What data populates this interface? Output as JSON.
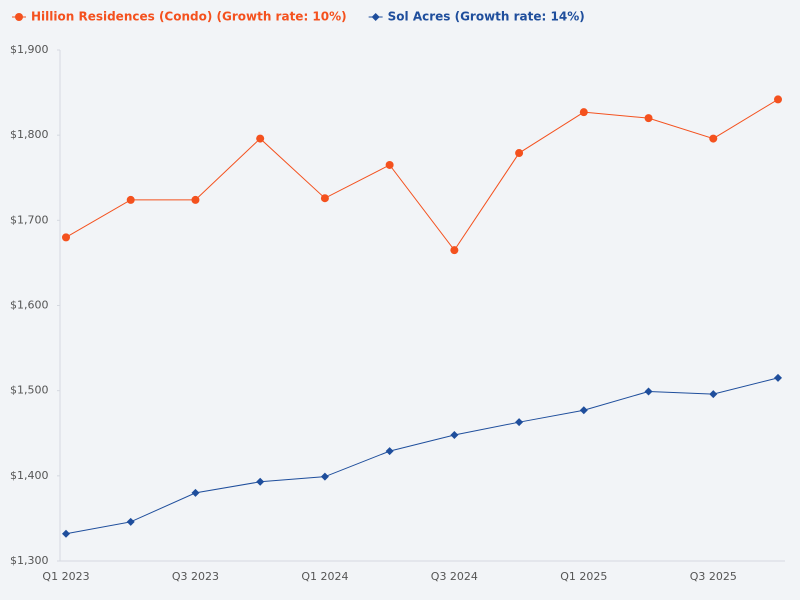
{
  "chart_data": {
    "type": "line",
    "categories": [
      "Q1 2023",
      null,
      "Q3 2023",
      null,
      "Q1 2024",
      null,
      "Q3 2024",
      null,
      "Q1 2025",
      null,
      "Q3 2025",
      null
    ],
    "series": [
      {
        "name": "Hillion Residences (Condo) (Growth rate: 10%)",
        "color": "#f4511e",
        "marker": "circle",
        "values": [
          1680,
          1724,
          1724,
          1796,
          1726,
          1765,
          1665,
          1779,
          1827,
          1820,
          1796,
          1842
        ]
      },
      {
        "name": "Sol Acres (Growth rate: 14%)",
        "color": "#1f4e9c",
        "marker": "diamond",
        "values": [
          1332,
          1346,
          1380,
          1393,
          1399,
          1429,
          1448,
          1463,
          1477,
          1499,
          1496,
          1515
        ]
      }
    ],
    "ylim": [
      1300,
      1900
    ],
    "yticks": [
      {
        "value": 1300,
        "label": "$1,300"
      },
      {
        "value": 1400,
        "label": "$1,400"
      },
      {
        "value": 1500,
        "label": "$1,500"
      },
      {
        "value": 1600,
        "label": "$1,600"
      },
      {
        "value": 1700,
        "label": "$1,700"
      },
      {
        "value": 1800,
        "label": "$1,800"
      },
      {
        "value": 1900,
        "label": "$1,900"
      }
    ],
    "grid": false,
    "legend": "top-left"
  }
}
